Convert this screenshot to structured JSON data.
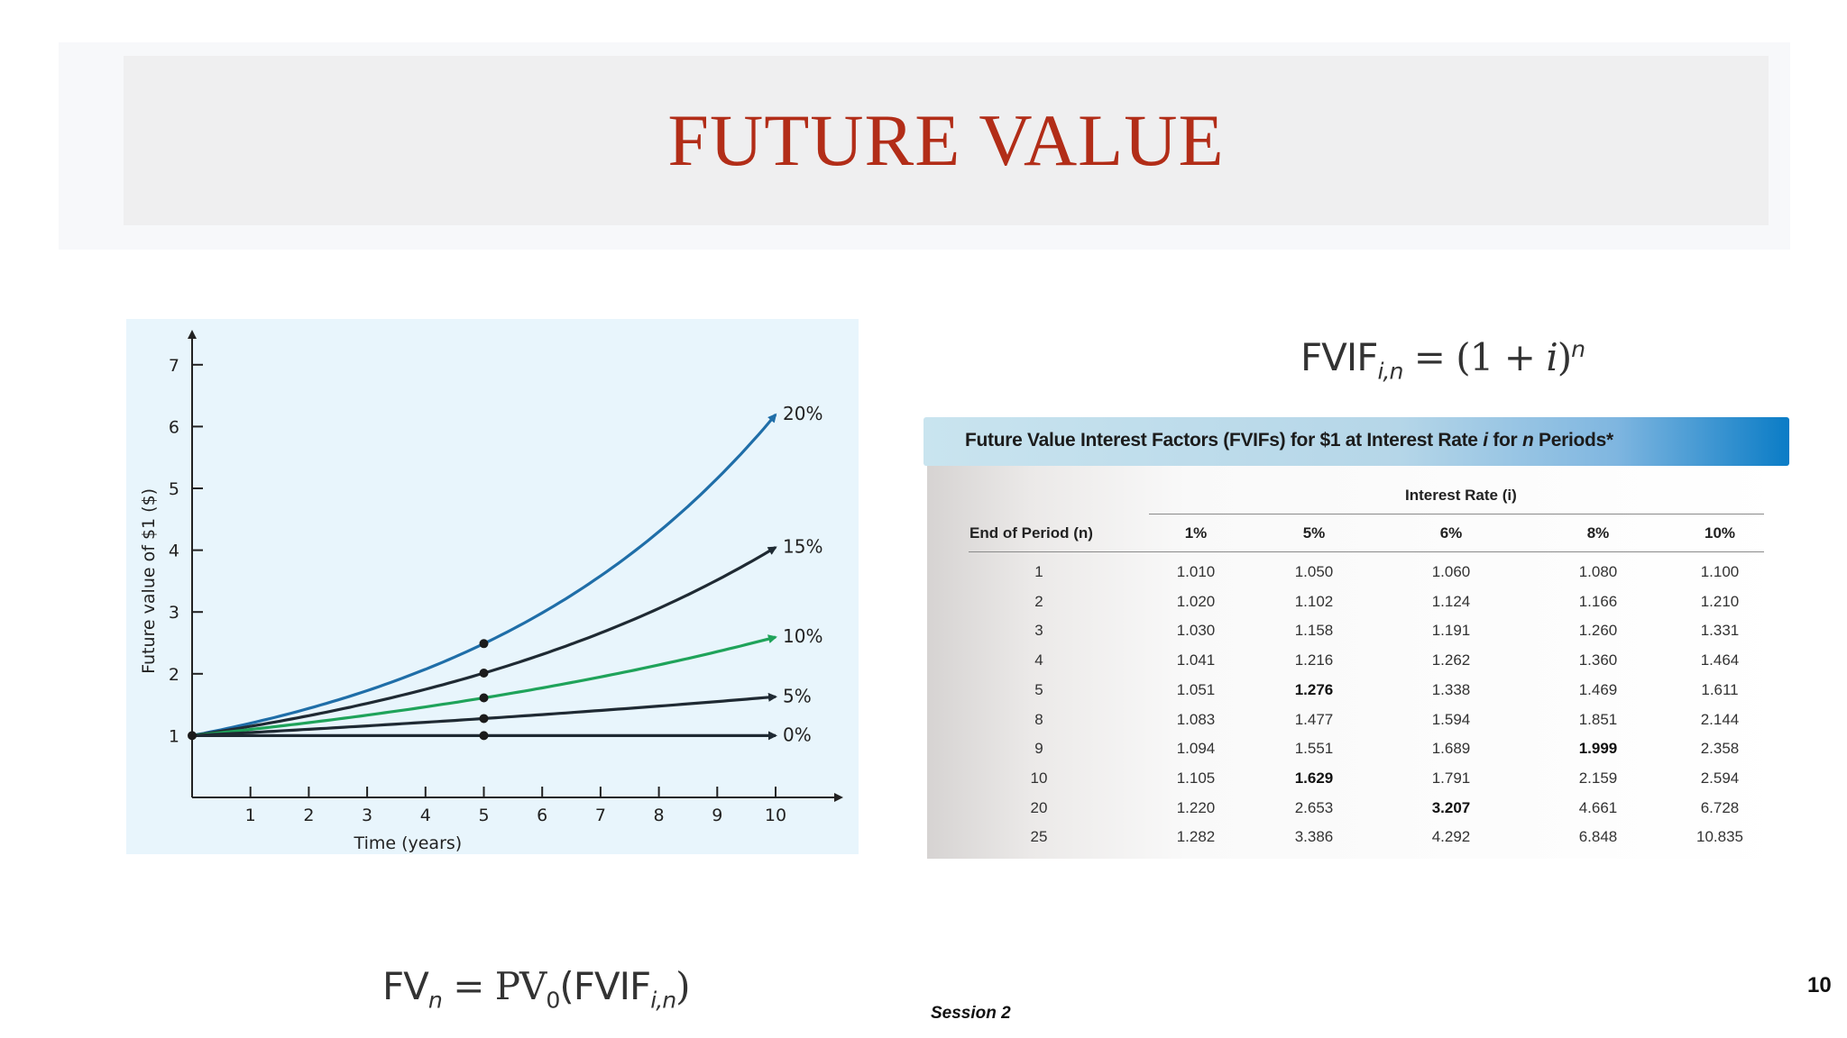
{
  "slide": {
    "title": "FUTURE VALUE",
    "session": "Session 2",
    "page_number": "10",
    "title_color": "#b22d18"
  },
  "formulas": {
    "fvif_lhs": "FVIF",
    "fvif_sub": "i,n",
    "fvif_eq": " = (1 + ",
    "fvif_i": "i",
    "fvif_close": ")",
    "fvif_sup": "n",
    "fv_lhs": "FV",
    "fv_sub": "n",
    "fv_eq": " = PV",
    "fv_pv_sub": "0",
    "fv_open": "(FVIF",
    "fv_inner_sub": "i,n",
    "fv_close": ")"
  },
  "chart_data": {
    "type": "line",
    "xlabel": "Time (years)",
    "ylabel": "Future value of $1 ($)",
    "xlim": [
      0,
      10
    ],
    "ylim": [
      0,
      7
    ],
    "x_ticks": [
      1,
      2,
      3,
      4,
      5,
      6,
      7,
      8,
      9,
      10
    ],
    "y_ticks": [
      1,
      2,
      3,
      4,
      5,
      6,
      7
    ],
    "grid": false,
    "marked_x": 5,
    "series": [
      {
        "name": "20%",
        "rate": 0.2,
        "color": "#1f6ea8"
      },
      {
        "name": "15%",
        "rate": 0.15,
        "color": "#1f2a33"
      },
      {
        "name": "10%",
        "rate": 0.1,
        "color": "#1fa35a"
      },
      {
        "name": "5%",
        "rate": 0.05,
        "color": "#1f2a33"
      },
      {
        "name": "0%",
        "rate": 0.0,
        "color": "#1f2a33"
      }
    ]
  },
  "table": {
    "title_pre": "Future Value Interest Factors (FVIFs) for $1 at Interest Rate ",
    "title_i": "i",
    "title_mid": " for ",
    "title_n": "n",
    "title_post": " Periods*",
    "rate_heading": "Interest Rate (i)",
    "period_heading": "End of Period (n)",
    "columns": [
      "1%",
      "5%",
      "6%",
      "8%",
      "10%"
    ],
    "rows": [
      {
        "period": "1",
        "values": [
          "1.010",
          "1.050",
          "1.060",
          "1.080",
          "1.100"
        ],
        "bold": []
      },
      {
        "period": "2",
        "values": [
          "1.020",
          "1.102",
          "1.124",
          "1.166",
          "1.210"
        ],
        "bold": []
      },
      {
        "period": "3",
        "values": [
          "1.030",
          "1.158",
          "1.191",
          "1.260",
          "1.331"
        ],
        "bold": []
      },
      {
        "period": "4",
        "values": [
          "1.041",
          "1.216",
          "1.262",
          "1.360",
          "1.464"
        ],
        "bold": []
      },
      {
        "period": "5",
        "values": [
          "1.051",
          "1.276",
          "1.338",
          "1.469",
          "1.611"
        ],
        "bold": [
          1
        ]
      },
      {
        "period": "8",
        "values": [
          "1.083",
          "1.477",
          "1.594",
          "1.851",
          "2.144"
        ],
        "bold": []
      },
      {
        "period": "9",
        "values": [
          "1.094",
          "1.551",
          "1.689",
          "1.999",
          "2.358"
        ],
        "bold": [
          3
        ]
      },
      {
        "period": "10",
        "values": [
          "1.105",
          "1.629",
          "1.791",
          "2.159",
          "2.594"
        ],
        "bold": [
          1
        ]
      },
      {
        "period": "20",
        "values": [
          "1.220",
          "2.653",
          "3.207",
          "4.661",
          "6.728"
        ],
        "bold": [
          2
        ]
      },
      {
        "period": "25",
        "values": [
          "1.282",
          "3.386",
          "4.292",
          "6.848",
          "10.835"
        ],
        "bold": []
      }
    ]
  }
}
